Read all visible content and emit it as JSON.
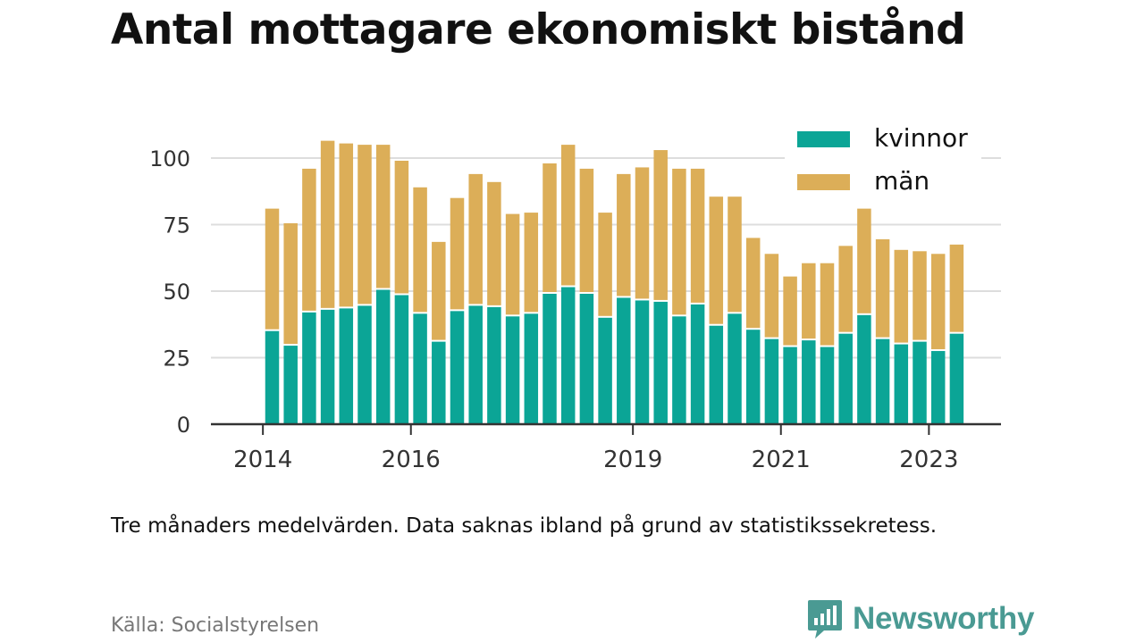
{
  "title": "Antal mottagare ekonomiskt bistånd",
  "caption": "Tre månaders medelvärden. Data saknas ibland på grund av statistikssekretess.",
  "source": "Källa: Socialstyrelsen",
  "brand": {
    "name": "Newsworthy",
    "icon": "newsworthy-logo-icon",
    "color": "#4a9a93"
  },
  "colors": {
    "kvinnor": "#0ba596",
    "man": "#dcae58",
    "grid": "#dddddd",
    "axis": "#333333"
  },
  "chart_data": {
    "type": "bar",
    "stacked": true,
    "x_tick_labels": [
      "2014",
      "2016",
      "2019",
      "2021",
      "2023"
    ],
    "x_tick_index": [
      -0.5,
      7.5,
      19.5,
      27.5,
      35.5
    ],
    "ylim": [
      0,
      110
    ],
    "y_ticks": [
      0,
      25,
      50,
      75,
      100
    ],
    "grid": true,
    "legend": "top-right",
    "series": [
      {
        "name": "kvinnor",
        "color": "#0ba596",
        "values": [
          35,
          29.5,
          42,
          43,
          43.5,
          44.5,
          50.5,
          48.5,
          41.5,
          31,
          42.5,
          44.5,
          44,
          40.5,
          41.5,
          49,
          51.5,
          49,
          40,
          47.5,
          46.5,
          46,
          40.5,
          45,
          37,
          41.5,
          35.5,
          32,
          29,
          31.5,
          29,
          34,
          41,
          32,
          30,
          31,
          27.5,
          34
        ]
      },
      {
        "name": "män",
        "color": "#dcae58",
        "values": [
          46,
          46,
          54,
          63.5,
          62,
          60.5,
          54.5,
          50.5,
          47.5,
          37.5,
          42.5,
          49.5,
          47,
          38.5,
          38,
          49,
          53.5,
          47,
          39.5,
          46.5,
          50,
          57,
          55.5,
          51,
          48.5,
          44,
          34.5,
          32,
          26.5,
          29,
          31.5,
          33,
          40,
          37.5,
          35.5,
          34,
          36.5,
          33.5
        ]
      }
    ]
  }
}
